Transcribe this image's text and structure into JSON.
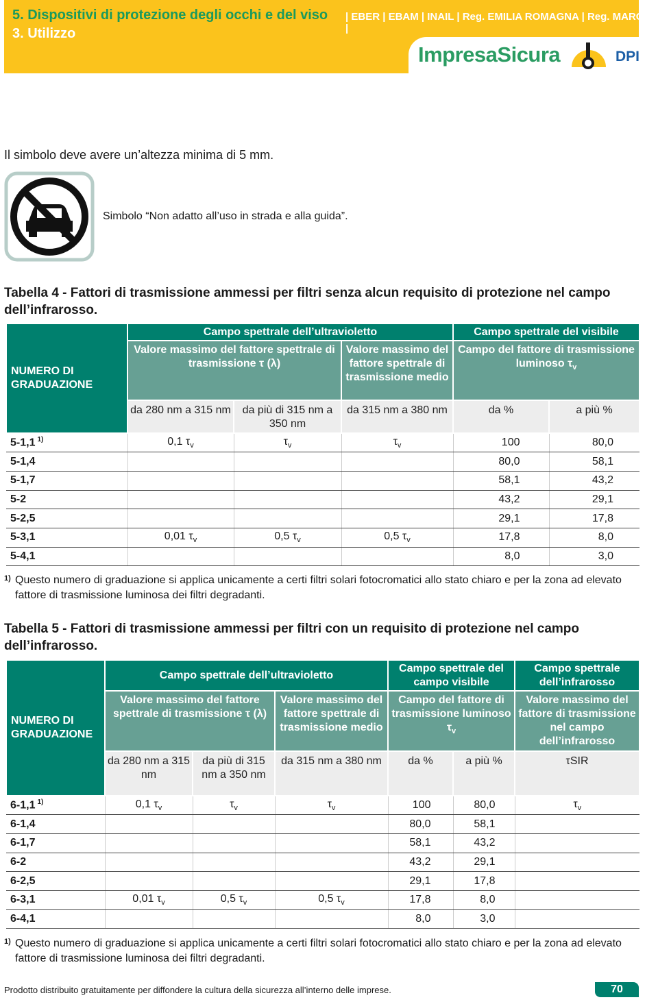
{
  "header": {
    "title": "5. Dispositivi di protezione degli occhi e del viso",
    "subtitle": "3. Utilizzo",
    "sources": "| EBER | EBAM | INAIL | Reg. EMILIA ROMAGNA | Reg. MARCHE |",
    "logo": "ImpresaSicura",
    "logo_tag": "DPI"
  },
  "intro": "Il simbolo deve avere un’altezza minima di 5 mm.",
  "symbol_caption": "Simbolo “Non adatto all’uso in strada e alla guida”.",
  "table4": {
    "caption_label": "Tabella 4 -",
    "caption": "Fattori di trasmissione ammessi per filtri senza alcun requisito di protezione nel campo dell’infrarosso.",
    "row_header": "NUMERO DI GRADUAZIONE",
    "groups": [
      "Campo spettrale dell’ultravioletto",
      "Campo spettrale del visibile"
    ],
    "subgroups": [
      "Valore massimo del fattore spettrale di trasmissione τ (λ)",
      "Valore massimo del fattore spettrale di trasmissione medio",
      {
        "main": "Campo del fattore di trasmissione luminoso τ",
        "sub": "v"
      }
    ],
    "ranges": [
      "da 280 nm a 315 nm",
      "da più di 315 nm a 350 nm",
      "da 315 nm a 380 nm",
      "da %",
      "a più %"
    ],
    "rows": [
      {
        "label": "5-1,1",
        "note": "1)",
        "uv": [
          {
            "main": "0,1 τ",
            "sub": "v"
          },
          {
            "main": "τ",
            "sub": "v"
          },
          {
            "main": "τ",
            "sub": "v"
          }
        ],
        "from": "100",
        "to": "80,0"
      },
      {
        "label": "5-1,4",
        "from": "80,0",
        "to": "58,1"
      },
      {
        "label": "5-1,7",
        "from": "58,1",
        "to": "43,2"
      },
      {
        "label": "5-2",
        "from": "43,2",
        "to": "29,1"
      },
      {
        "label": "5-2,5",
        "from": "29,1",
        "to": "17,8"
      },
      {
        "label": "5-3,1",
        "uv": [
          {
            "main": "0,01 τ",
            "sub": "v"
          },
          {
            "main": "0,5 τ",
            "sub": "v"
          },
          {
            "main": "0,5 τ",
            "sub": "v"
          }
        ],
        "from": "17,8",
        "to": "8,0"
      },
      {
        "label": "5-4,1",
        "from": "8,0",
        "to": "3,0"
      }
    ],
    "footnote": {
      "mark": "1)",
      "text": "Questo numero di graduazione si applica unicamente a certi filtri solari fotocromatici allo stato chiaro e per la zona ad elevato fattore di trasmissione luminosa dei filtri degradanti."
    }
  },
  "table5": {
    "caption_label": "Tabella 5 -",
    "caption": "Fattori di trasmissione ammessi per filtri con un requisito di protezione nel campo dell’infrarosso.",
    "row_header": "NUMERO DI GRADUAZIONE",
    "groups": [
      "Campo spettrale dell’ultravioletto",
      "Campo spettrale del campo visibile",
      "Campo spettrale dell’infrarosso"
    ],
    "subgroups": [
      "Valore massimo del fattore spettrale di trasmissione τ (λ)",
      "Valore massimo del fattore spettrale di trasmissione medio",
      {
        "main": "Campo del fattore di trasmissione luminoso τ",
        "sub": "v"
      },
      "Valore massimo del fattore di trasmissione nel campo dell’infrarosso"
    ],
    "ranges": [
      "da 280 nm a 315 nm",
      "da più di 315 nm a 350 nm",
      "da 315 nm a 380 nm",
      "da %",
      "a più %",
      "τSIR"
    ],
    "rows": [
      {
        "label": "6-1,1",
        "note": "1)",
        "uv": [
          {
            "main": "0,1 τ",
            "sub": "v"
          },
          {
            "main": "τ",
            "sub": "v"
          },
          {
            "main": "τ",
            "sub": "v"
          }
        ],
        "from": "100",
        "to": "80,0",
        "ir": {
          "main": "τ",
          "sub": "v"
        }
      },
      {
        "label": "6-1,4",
        "from": "80,0",
        "to": "58,1"
      },
      {
        "label": "6-1,7",
        "from": "58,1",
        "to": "43,2"
      },
      {
        "label": "6-2",
        "from": "43,2",
        "to": "29,1"
      },
      {
        "label": "6-2,5",
        "from": "29,1",
        "to": "17,8"
      },
      {
        "label": "6-3,1",
        "uv": [
          {
            "main": "0,01 τ",
            "sub": "v"
          },
          {
            "main": "0,5 τ",
            "sub": "v"
          },
          {
            "main": "0,5 τ",
            "sub": "v"
          }
        ],
        "from": "17,8",
        "to": "8,0"
      },
      {
        "label": "6-4,1",
        "from": "8,0",
        "to": "3,0"
      }
    ],
    "footnote": {
      "mark": "1)",
      "text": "Questo numero di graduazione si applica unicamente a certi filtri solari fotocromatici allo stato chiaro e per la zona ad elevato fattore di trasmissione luminosa dei filtri degradanti."
    }
  },
  "footer": {
    "text": "Prodotto distribuito gratuitamente per diffondere la cultura della sicurezza all’interno delle imprese.",
    "page": "70"
  }
}
